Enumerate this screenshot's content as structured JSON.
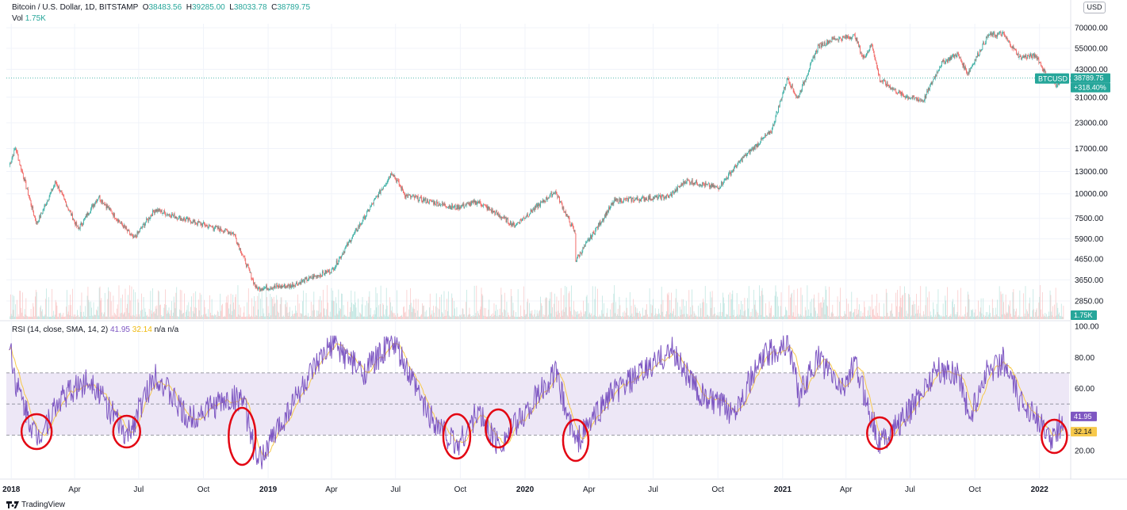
{
  "header": {
    "symbol": "Bitcoin / U.S. Dollar, 1D, BITSTAMP",
    "ohlc": [
      {
        "label": "O",
        "value": "38483.56"
      },
      {
        "label": "H",
        "value": "39285.00"
      },
      {
        "label": "L",
        "value": "38033.78"
      },
      {
        "label": "C",
        "value": "38789.75"
      }
    ],
    "vol_label": "Vol",
    "vol_value": "1.75K",
    "currency": "USD"
  },
  "rsi_legend": {
    "label": "RSI (14, close, SMA, 14, 2)",
    "rsi": "41.95",
    "sma": "32.14",
    "na1": "n/a",
    "na2": "n/a"
  },
  "price_tags": {
    "symbol": "BTCUSD",
    "price": "38789.75",
    "change": "+318.40%",
    "vol": "1.75K",
    "rsi": "41.95",
    "rsi_sma": "32.14"
  },
  "branding": "TradingView",
  "colors": {
    "up": "#26a69a",
    "down": "#ef5350",
    "rsi_line": "#7e57c2",
    "rsi_sma": "#f7c94b",
    "rsi_band": "#ede7f6",
    "circles": "#e30613"
  },
  "chart_data": [
    {
      "type": "candlestick",
      "title": "Bitcoin / U.S. Dollar, 1D, BITSTAMP",
      "y_scale": "log",
      "y_ticks": [
        "70000.00",
        "55000.00",
        "43000.00",
        "31000.00",
        "23000.00",
        "17000.00",
        "13000.00",
        "10000.00",
        "7500.00",
        "5900.00",
        "4650.00",
        "3650.00",
        "2850.00"
      ],
      "x_ticks": [
        "2018",
        "Apr",
        "Jul",
        "Oct",
        "2019",
        "Apr",
        "Jul",
        "Oct",
        "2020",
        "Apr",
        "Jul",
        "Oct",
        "2021",
        "Apr",
        "Jul",
        "Oct",
        "2022"
      ],
      "x": [
        "2017-12-29",
        "2018-01-07",
        "2018-02-06",
        "2018-03-05",
        "2018-04-06",
        "2018-05-05",
        "2018-06-24",
        "2018-07-24",
        "2018-09-05",
        "2018-11-13",
        "2018-12-15",
        "2019-02-01",
        "2019-04-02",
        "2019-06-26",
        "2019-07-15",
        "2019-09-24",
        "2019-10-26",
        "2019-12-17",
        "2020-02-13",
        "2020-03-12",
        "2020-03-13",
        "2020-05-07",
        "2020-07-24",
        "2020-08-17",
        "2020-10-01",
        "2020-11-06",
        "2020-12-16",
        "2021-01-08",
        "2021-01-22",
        "2021-02-20",
        "2021-03-13",
        "2021-04-14",
        "2021-04-25",
        "2021-05-08",
        "2021-05-19",
        "2021-06-22",
        "2021-07-20",
        "2021-08-14",
        "2021-09-06",
        "2021-09-21",
        "2021-10-20",
        "2021-11-10",
        "2021-12-04",
        "2021-12-27",
        "2022-01-10",
        "2022-01-24",
        "2022-02-04"
      ],
      "close": [
        14000,
        17100,
        7000,
        11500,
        6600,
        9700,
        5900,
        8300,
        7400,
        6300,
        3300,
        3400,
        4100,
        12900,
        9800,
        8500,
        9100,
        6900,
        10300,
        6300,
        4600,
        9200,
        9700,
        11700,
        10700,
        15300,
        20900,
        39000,
        30500,
        56000,
        61200,
        63500,
        49000,
        57500,
        38000,
        31500,
        29800,
        46000,
        51500,
        41000,
        64000,
        65000,
        49500,
        50500,
        40500,
        36000,
        38790
      ]
    },
    {
      "type": "line",
      "title": "RSI (14, close, SMA, 14, 2)",
      "y_ticks": [
        "100.00",
        "80.00",
        "60.00",
        "20.00"
      ],
      "levels": [
        70,
        50,
        30
      ],
      "x_ticks": [
        "2018",
        "Apr",
        "Jul",
        "Oct",
        "2019",
        "Apr",
        "Jul",
        "Oct",
        "2020",
        "Apr",
        "Jul",
        "Oct",
        "2021",
        "Apr",
        "Jul",
        "Oct",
        "2022"
      ],
      "x": [
        "2017-12-29",
        "2018-01-08",
        "2018-02-06",
        "2018-03-15",
        "2018-04-25",
        "2018-06-14",
        "2018-07-25",
        "2018-09-08",
        "2018-10-20",
        "2018-11-25",
        "2018-12-17",
        "2019-02-10",
        "2019-04-03",
        "2019-05-15",
        "2019-06-27",
        "2019-08-15",
        "2019-09-26",
        "2019-10-26",
        "2019-11-24",
        "2019-12-18",
        "2020-02-13",
        "2020-03-13",
        "2020-04-29",
        "2020-06-16",
        "2020-07-28",
        "2020-09-07",
        "2020-10-22",
        "2020-12-05",
        "2021-01-09",
        "2021-01-25",
        "2021-02-20",
        "2021-03-25",
        "2021-04-14",
        "2021-05-19",
        "2021-06-27",
        "2021-08-06",
        "2021-09-08",
        "2021-09-24",
        "2021-10-16",
        "2021-11-10",
        "2021-12-05",
        "2021-12-24",
        "2022-01-09",
        "2022-01-22",
        "2022-02-04"
      ],
      "series": [
        {
          "values": [
            92,
            62,
            28,
            55,
            66,
            28,
            70,
            40,
            50,
            55,
            11,
            55,
            89,
            70,
            90,
            45,
            23,
            45,
            24,
            36,
            70,
            25,
            55,
            70,
            85,
            55,
            45,
            80,
            90,
            55,
            80,
            60,
            75,
            25,
            43,
            72,
            70,
            40,
            70,
            78,
            50,
            46,
            30,
            28,
            41.95
          ]
        }
      ],
      "annotations": [
        {
          "shape": "circle",
          "x": "2018-02-06"
        },
        {
          "shape": "circle",
          "x": "2018-06-14"
        },
        {
          "shape": "circle",
          "x": "2018-11-25"
        },
        {
          "shape": "circle",
          "x": "2019-09-26"
        },
        {
          "shape": "circle",
          "x": "2019-11-24"
        },
        {
          "shape": "circle",
          "x": "2020-03-13"
        },
        {
          "shape": "circle",
          "x": "2021-05-19"
        },
        {
          "shape": "circle",
          "x": "2022-01-22"
        }
      ]
    }
  ]
}
